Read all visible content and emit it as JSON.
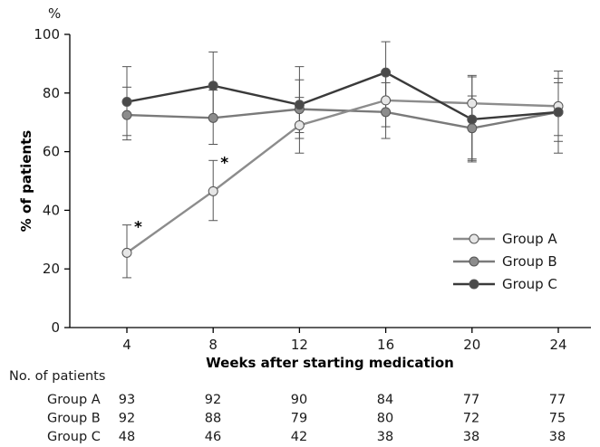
{
  "chart_data": {
    "type": "line",
    "unit_label": "%",
    "ylabel": "% of patients",
    "xlabel": "Weeks after starting medication",
    "x": [
      4,
      8,
      12,
      16,
      20,
      24
    ],
    "x_tick_labels": [
      "4",
      "8",
      "12",
      "16",
      "20",
      "24"
    ],
    "ylim": [
      0,
      100
    ],
    "y_ticks": [
      0,
      20,
      40,
      60,
      80,
      100
    ],
    "y_tick_labels": [
      "0",
      "20",
      "40",
      "60",
      "80",
      "100"
    ],
    "grid": false,
    "legend_position": "right",
    "series": [
      {
        "name": "Group A",
        "color": "#e6e6e6",
        "line_color": "#8c8c8c",
        "values": [
          25.5,
          46.5,
          69,
          77.5,
          76.5,
          75.5
        ],
        "err_low": [
          17,
          36.5,
          59.5,
          68.5,
          57.5,
          65.5
        ],
        "err_high": [
          35,
          57,
          78.5,
          86.5,
          86,
          85
        ],
        "marker_annotations": [
          "*",
          "*",
          "",
          "",
          "",
          ""
        ]
      },
      {
        "name": "Group B",
        "color": "#8c8c8c",
        "line_color": "#7a7a7a",
        "values": [
          72.5,
          71.5,
          74.5,
          73.5,
          68,
          73.5
        ],
        "err_low": [
          64,
          62.5,
          64.5,
          64.5,
          56.5,
          59.5
        ],
        "err_high": [
          82,
          81,
          84.5,
          83.5,
          79,
          87.5
        ],
        "marker_annotations": [
          "",
          "",
          "",
          "",
          "",
          ""
        ]
      },
      {
        "name": "Group C",
        "color": "#4a4a4a",
        "line_color": "#3a3a3a",
        "values": [
          77,
          82.5,
          76,
          87,
          71,
          73.5
        ],
        "err_low": [
          65.5,
          71,
          66.5,
          77,
          57,
          63.5
        ],
        "err_high": [
          89,
          94,
          89,
          97.5,
          85.5,
          83.5
        ],
        "marker_annotations": [
          "",
          "",
          "",
          "",
          "",
          ""
        ]
      }
    ]
  },
  "patients_table": {
    "heading": "No. of patients",
    "rows": [
      {
        "group": "Group A",
        "counts": [
          "93",
          "92",
          "90",
          "84",
          "77",
          "77"
        ]
      },
      {
        "group": "Group B",
        "counts": [
          "92",
          "88",
          "79",
          "80",
          "72",
          "75"
        ]
      },
      {
        "group": "Group C",
        "counts": [
          "48",
          "46",
          "42",
          "38",
          "38",
          "38"
        ]
      }
    ]
  }
}
